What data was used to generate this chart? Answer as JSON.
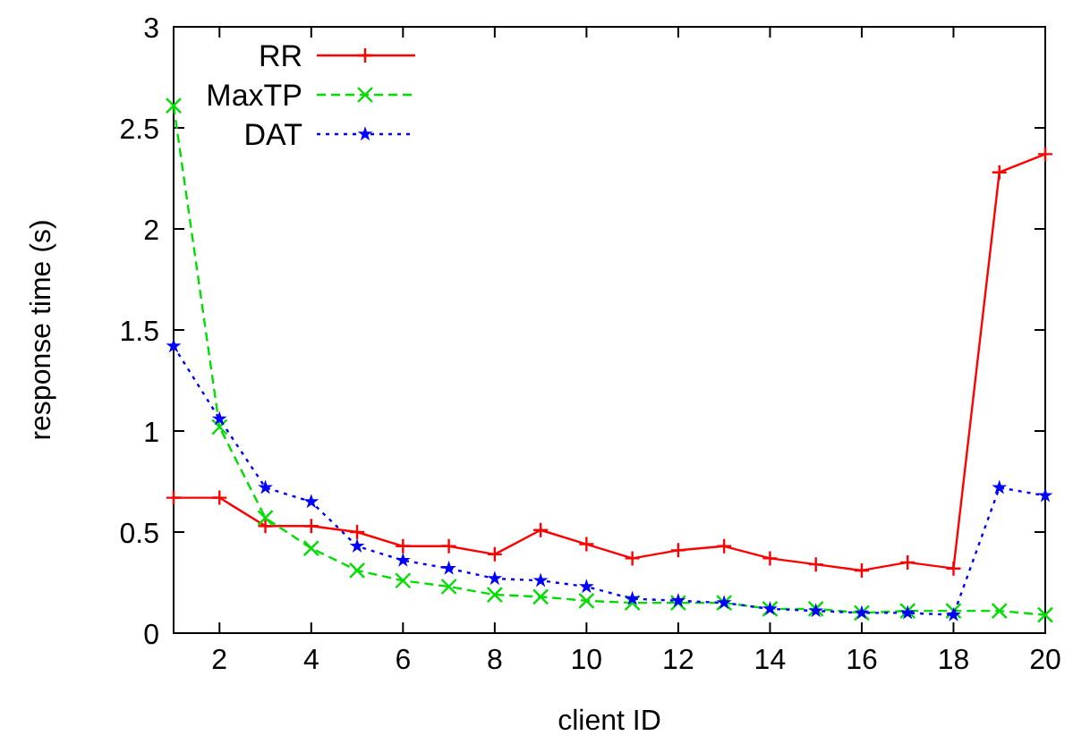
{
  "chart_data": {
    "type": "line",
    "xlabel": "client ID",
    "ylabel": "response time (s)",
    "xlim": [
      1,
      20
    ],
    "ylim": [
      0,
      3
    ],
    "xticks": [
      2,
      4,
      6,
      8,
      10,
      12,
      14,
      16,
      18,
      20
    ],
    "yticks": [
      0,
      0.5,
      1,
      1.5,
      2,
      2.5,
      3
    ],
    "legend": "top left",
    "grid": false,
    "x": [
      1,
      2,
      3,
      4,
      5,
      6,
      7,
      8,
      9,
      10,
      11,
      12,
      13,
      14,
      15,
      16,
      17,
      18,
      19,
      20
    ],
    "series": [
      {
        "name": "RR",
        "color": "#ff0000",
        "marker": "cross",
        "line_style": "solid",
        "values": [
          0.67,
          0.67,
          0.53,
          0.53,
          0.5,
          0.43,
          0.43,
          0.39,
          0.51,
          0.44,
          0.37,
          0.41,
          0.43,
          0.37,
          0.34,
          0.31,
          0.35,
          0.32,
          2.28,
          2.37
        ]
      },
      {
        "name": "MaxTP",
        "color": "#00dd00",
        "marker": "x",
        "line_style": "dashed",
        "values": [
          2.61,
          1.02,
          0.57,
          0.42,
          0.31,
          0.26,
          0.23,
          0.19,
          0.18,
          0.16,
          0.15,
          0.15,
          0.15,
          0.12,
          0.12,
          0.1,
          0.11,
          0.11,
          0.11,
          0.09
        ]
      },
      {
        "name": "DAT",
        "color": "#0000ff",
        "marker": "star",
        "line_style": "dotted",
        "values": [
          1.42,
          1.06,
          0.72,
          0.65,
          0.43,
          0.36,
          0.32,
          0.27,
          0.26,
          0.23,
          0.17,
          0.16,
          0.15,
          0.12,
          0.11,
          0.1,
          0.1,
          0.09,
          0.72,
          0.68
        ]
      }
    ]
  }
}
